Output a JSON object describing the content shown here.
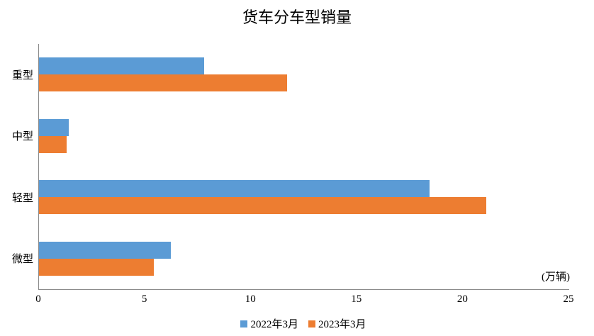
{
  "title": "货车分车型销量",
  "unit_label": "(万辆)",
  "colors": {
    "series_blue": "#5B9BD5",
    "series_orange": "#ED7D31",
    "axis_line": "#898989",
    "text": "#000000",
    "background": "#FFFFFF"
  },
  "chart_data": {
    "type": "bar",
    "orientation": "horizontal",
    "title": "货车分车型销量",
    "categories": [
      "重型",
      "中型",
      "轻型",
      "微型"
    ],
    "series": [
      {
        "name": "2022年3月",
        "color": "#5B9BD5",
        "values": [
          7.8,
          1.4,
          18.4,
          6.2
        ]
      },
      {
        "name": "2023年3月",
        "color": "#ED7D31",
        "values": [
          11.7,
          1.3,
          21.1,
          5.4
        ]
      }
    ],
    "xlabel": "(万辆)",
    "ylabel": "",
    "xlim": [
      0,
      25
    ],
    "xticks": [
      0,
      5,
      10,
      15,
      20,
      25
    ],
    "grid": false,
    "legend_position": "bottom-center"
  }
}
